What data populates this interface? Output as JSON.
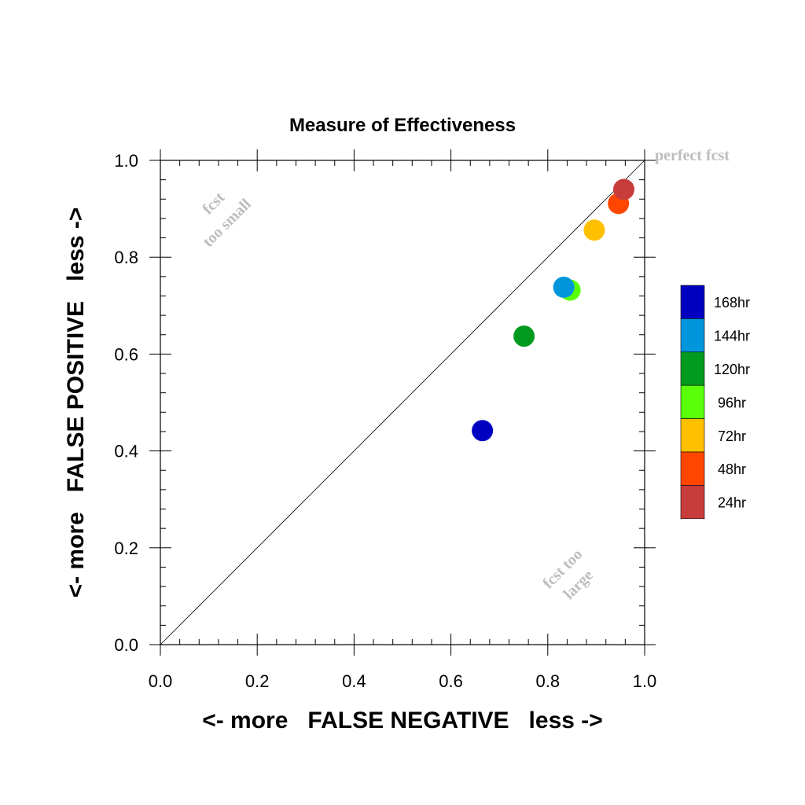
{
  "chart_data": {
    "type": "scatter",
    "title": "Measure of Effectiveness",
    "xlabel": "<- more   FALSE NEGATIVE   less ->",
    "ylabel": "<- more   FALSE POSITIVE   less ->",
    "xlim": [
      0.0,
      1.0
    ],
    "ylim": [
      0.0,
      1.0
    ],
    "xticks": [
      "0.0",
      "0.2",
      "0.4",
      "0.6",
      "0.8",
      "1.0"
    ],
    "yticks": [
      "0.0",
      "0.2",
      "0.4",
      "0.6",
      "0.8",
      "1.0"
    ],
    "diagonal_line": true,
    "grid": false,
    "legend_placement": "right",
    "annotations": {
      "perfect": "perfect fcst",
      "too_small_line1": "fcst",
      "too_small_line2": "too small",
      "too_large_line1": "fcst too",
      "too_large_line2": "large"
    },
    "series": [
      {
        "name": "168hr",
        "color": "#0000c0",
        "x": 0.665,
        "y": 0.442
      },
      {
        "name": "144hr",
        "color": "#0096dc",
        "x": 0.833,
        "y": 0.738
      },
      {
        "name": "120hr",
        "color": "#009b1e",
        "x": 0.751,
        "y": 0.637
      },
      {
        "name": "96hr",
        "color": "#5aff0a",
        "x": 0.846,
        "y": 0.732
      },
      {
        "name": "72hr",
        "color": "#ffc000",
        "x": 0.896,
        "y": 0.856
      },
      {
        "name": "48hr",
        "color": "#ff4600",
        "x": 0.946,
        "y": 0.911
      },
      {
        "name": "24hr",
        "color": "#c83c3c",
        "x": 0.957,
        "y": 0.94
      }
    ],
    "plot_order": [
      "168hr",
      "120hr",
      "96hr",
      "144hr",
      "72hr",
      "48hr",
      "24hr"
    ]
  }
}
